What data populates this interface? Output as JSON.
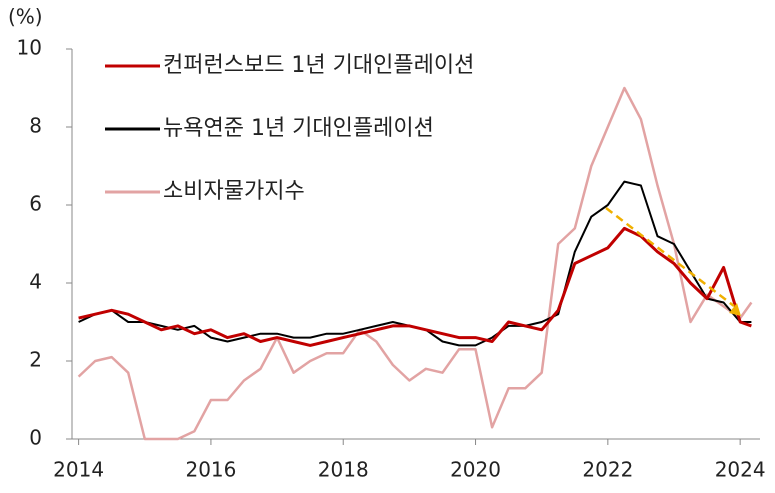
{
  "chart_data": {
    "type": "line",
    "y_label": "(%)",
    "x": [
      2014,
      2014.25,
      2014.5,
      2014.75,
      2015,
      2015.25,
      2015.5,
      2015.75,
      2016,
      2016.25,
      2016.5,
      2016.75,
      2017,
      2017.25,
      2017.5,
      2017.75,
      2018,
      2018.25,
      2018.5,
      2018.75,
      2019,
      2019.25,
      2019.5,
      2019.75,
      2020,
      2020.25,
      2020.5,
      2020.75,
      2021,
      2021.25,
      2021.5,
      2021.75,
      2022,
      2022.25,
      2022.5,
      2022.75,
      2023,
      2023.25,
      2023.5,
      2023.75,
      2024,
      2024.17
    ],
    "series": [
      {
        "name": "컨퍼런스보드 1년 기대인플레이션",
        "color": "#c00000",
        "width": 3,
        "values": [
          3.1,
          3.2,
          3.3,
          3.2,
          3.0,
          2.8,
          2.9,
          2.7,
          2.8,
          2.6,
          2.7,
          2.5,
          2.6,
          2.5,
          2.4,
          2.5,
          2.6,
          2.7,
          2.8,
          2.9,
          2.9,
          2.8,
          2.7,
          2.6,
          2.6,
          2.5,
          3.0,
          2.9,
          2.8,
          3.3,
          4.5,
          4.7,
          4.9,
          5.4,
          5.2,
          4.8,
          4.5,
          4.0,
          3.6,
          4.4,
          3.0,
          2.9
        ]
      },
      {
        "name": "뉴욕연준 1년 기대인플레이션",
        "color": "#000000",
        "width": 2,
        "values": [
          3.0,
          3.2,
          3.3,
          3.0,
          3.0,
          2.9,
          2.8,
          2.9,
          2.6,
          2.5,
          2.6,
          2.7,
          2.7,
          2.6,
          2.6,
          2.7,
          2.7,
          2.8,
          2.9,
          3.0,
          2.9,
          2.8,
          2.5,
          2.4,
          2.4,
          2.6,
          2.9,
          2.9,
          3.0,
          3.2,
          4.8,
          5.7,
          6.0,
          6.6,
          6.5,
          5.2,
          5.0,
          4.3,
          3.6,
          3.5,
          3.0,
          3.0
        ]
      },
      {
        "name": "소비자물가지수",
        "color": "#e2a3a3",
        "width": 2.5,
        "values": [
          1.6,
          2.0,
          2.1,
          1.7,
          0.0,
          0.0,
          0.0,
          0.2,
          1.0,
          1.0,
          1.5,
          1.8,
          2.6,
          1.7,
          2.0,
          2.2,
          2.2,
          2.8,
          2.5,
          1.9,
          1.5,
          1.8,
          1.7,
          2.3,
          2.3,
          0.3,
          1.3,
          1.3,
          1.7,
          5.0,
          5.4,
          7.0,
          8.0,
          9.0,
          8.2,
          6.5,
          5.0,
          3.0,
          3.7,
          3.4,
          3.1,
          3.5
        ]
      }
    ],
    "xlim": [
      2013.9,
      2024.3
    ],
    "xticks": [
      2014,
      2016,
      2018,
      2020,
      2022,
      2024
    ],
    "ylim": [
      0,
      10
    ],
    "yticks": [
      0,
      2,
      4,
      6,
      8,
      10
    ],
    "grid": false,
    "legend": "upper left"
  }
}
